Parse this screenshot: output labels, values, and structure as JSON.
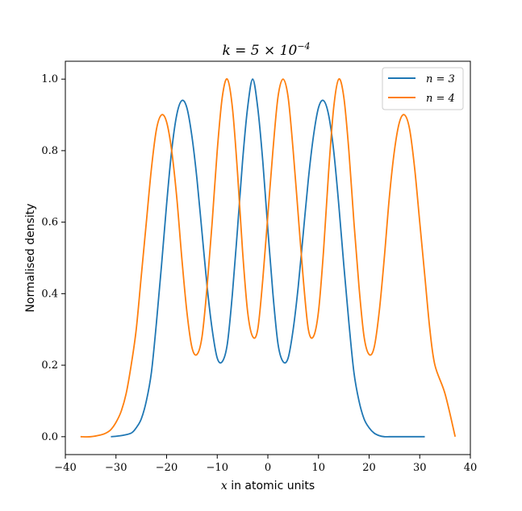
{
  "chart_data": {
    "type": "line",
    "title": "k = 5 × 10",
    "title_exp": "−4",
    "xlabel_var": "x",
    "xlabel": " in atomic units",
    "ylabel": "Normalised density",
    "xlim": [
      -40,
      40
    ],
    "ylim": [
      -0.05,
      1.05
    ],
    "xticks": [
      "−40",
      "−30",
      "−20",
      "−10",
      "0",
      "10",
      "20",
      "30",
      "40"
    ],
    "xtick_values": [
      -40,
      -30,
      -20,
      -10,
      0,
      10,
      20,
      30,
      40
    ],
    "yticks": [
      "0.0",
      "0.2",
      "0.4",
      "0.6",
      "0.8",
      "1.0"
    ],
    "ytick_values": [
      0,
      0.2,
      0.4,
      0.6,
      0.8,
      1.0
    ],
    "grid": false,
    "legend_position": "top-right",
    "series": [
      {
        "name": "n = 3",
        "color": "#1f77b4",
        "x": [
          -31,
          -29,
          -27,
          -26,
          -25,
          -24,
          -23,
          -22,
          -21,
          -20,
          -19,
          -18,
          -17,
          -16,
          -15,
          -14,
          -13,
          -12,
          -11,
          -10,
          -9,
          -8,
          -7,
          -6,
          -5,
          -4,
          -3,
          -2,
          -1,
          0,
          1,
          2,
          3,
          4,
          5,
          6,
          7,
          8,
          9,
          10,
          11,
          12,
          13,
          14,
          15,
          16,
          17,
          18,
          19,
          20,
          21,
          22,
          23,
          24,
          25,
          26,
          27,
          29,
          31
        ],
        "y": [
          0.0,
          0.003,
          0.01,
          0.025,
          0.05,
          0.1,
          0.18,
          0.32,
          0.48,
          0.65,
          0.8,
          0.9,
          0.94,
          0.92,
          0.84,
          0.72,
          0.57,
          0.42,
          0.3,
          0.22,
          0.21,
          0.26,
          0.4,
          0.58,
          0.77,
          0.92,
          1.0,
          0.92,
          0.77,
          0.58,
          0.4,
          0.26,
          0.21,
          0.22,
          0.3,
          0.42,
          0.57,
          0.72,
          0.84,
          0.92,
          0.94,
          0.9,
          0.8,
          0.65,
          0.48,
          0.32,
          0.18,
          0.1,
          0.05,
          0.025,
          0.01,
          0.003,
          0.0,
          0.0,
          0.0,
          0.0,
          0.0,
          0.0,
          0.0
        ],
        "x_note": ""
      },
      {
        "name": "n = 4",
        "color": "#ff7f0e",
        "x": [
          -37,
          -35,
          -33,
          -32,
          -31,
          -30,
          -29,
          -28,
          -27,
          -26,
          -25,
          -24,
          -23,
          -22,
          -21,
          -20,
          -19,
          -18,
          -17,
          -16,
          -15,
          -14,
          -13,
          -12,
          -11,
          -10,
          -9,
          -8,
          -7,
          -6,
          -5,
          -4,
          -3,
          -2,
          -1,
          0,
          1,
          2,
          3,
          4,
          5,
          6,
          7,
          8,
          9,
          10,
          11,
          12,
          13,
          14,
          15,
          16,
          17,
          18,
          19,
          20,
          21,
          22,
          23,
          24,
          25,
          26,
          27,
          28,
          29,
          30,
          31,
          32,
          33,
          35,
          37
        ],
        "y": [
          0.0,
          0.0,
          0.005,
          0.01,
          0.02,
          0.04,
          0.07,
          0.12,
          0.2,
          0.3,
          0.45,
          0.6,
          0.75,
          0.86,
          0.9,
          0.88,
          0.8,
          0.67,
          0.5,
          0.35,
          0.25,
          0.23,
          0.28,
          0.42,
          0.6,
          0.8,
          0.95,
          1.0,
          0.92,
          0.74,
          0.52,
          0.35,
          0.28,
          0.3,
          0.44,
          0.62,
          0.8,
          0.95,
          1.0,
          0.95,
          0.8,
          0.62,
          0.44,
          0.3,
          0.28,
          0.35,
          0.52,
          0.74,
          0.92,
          1.0,
          0.95,
          0.8,
          0.6,
          0.42,
          0.28,
          0.23,
          0.25,
          0.35,
          0.5,
          0.67,
          0.8,
          0.88,
          0.9,
          0.86,
          0.75,
          0.6,
          0.45,
          0.3,
          0.2,
          0.12,
          0.0
        ],
        "x_note": ""
      }
    ]
  }
}
